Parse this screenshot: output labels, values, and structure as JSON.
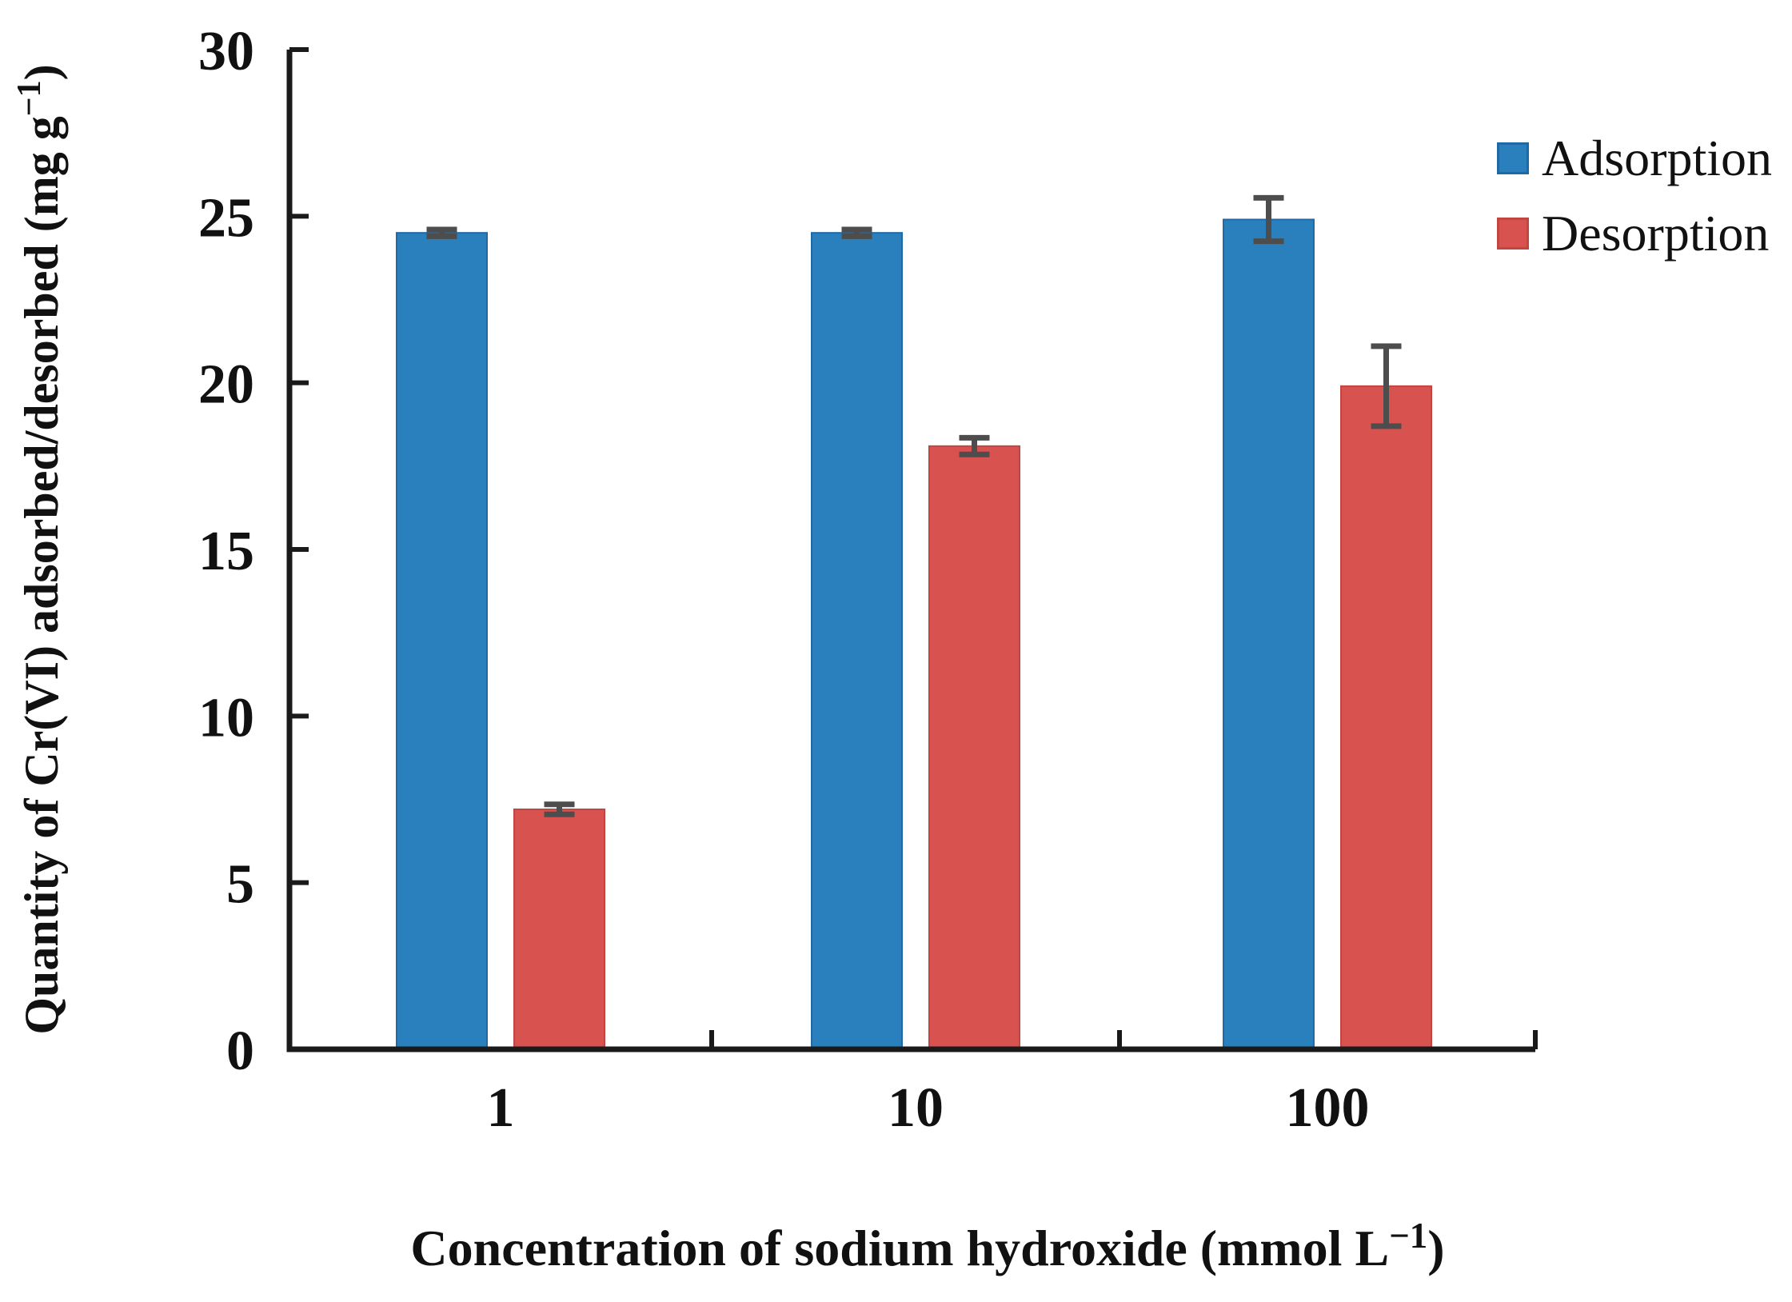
{
  "chart_data": {
    "type": "bar",
    "title": "",
    "xlabel": "Concentration of sodium hydroxide (mmol L⁻¹)",
    "ylabel": "Quantity of Cr(VI) adsorbed/desorbed (mg g⁻¹)",
    "xlabel_parts": {
      "pre": "Concentration of sodium hydroxide (mmol L",
      "sup": "−1",
      "post": ")"
    },
    "ylabel_parts": {
      "pre": "Quantity of Cr(VI) adsorbed/desorbed (mg g",
      "sup": "−1",
      "post": ")"
    },
    "categories": [
      "1",
      "10",
      "100"
    ],
    "series": [
      {
        "name": "Adsorption",
        "color": "#2a7fbd",
        "edge_color": "#1f6aa5",
        "values": [
          24.5,
          24.5,
          24.9
        ],
        "errors": [
          0.1,
          0.1,
          0.65
        ]
      },
      {
        "name": "Desorption",
        "color": "#d85250",
        "edge_color": "#c24542",
        "values": [
          7.2,
          18.1,
          19.9
        ],
        "errors": [
          0.15,
          0.25,
          1.2
        ]
      }
    ],
    "ylim": [
      0,
      30
    ],
    "ytick_step": 5,
    "ytick_labels": [
      "0",
      "5",
      "10",
      "15",
      "20",
      "25",
      "30"
    ],
    "grid": false,
    "legend_position": "upper right",
    "error_bar_color": "#4d4d4d",
    "axis_color": "#1a1a1a",
    "text_color": "#111111"
  }
}
